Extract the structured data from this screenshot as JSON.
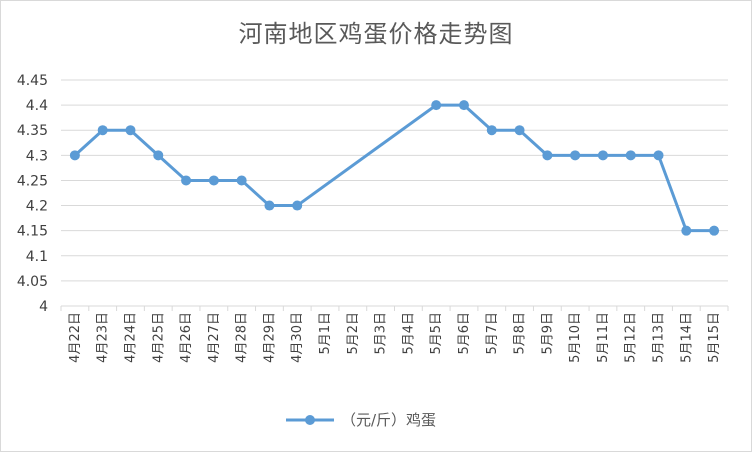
{
  "chart_data": {
    "type": "line",
    "title": "河南地区鸡蛋价格走势图",
    "xlabel": "",
    "ylabel": "",
    "ylim": [
      4,
      4.45
    ],
    "y_ticks": [
      "4",
      "4.05",
      "4.1",
      "4.15",
      "4.2",
      "4.25",
      "4.3",
      "4.35",
      "4.4",
      "4.45"
    ],
    "grid": true,
    "legend_position": "bottom",
    "categories": [
      "4月22日",
      "4月23日",
      "4月24日",
      "4月25日",
      "4月26日",
      "4月27日",
      "4月28日",
      "4月29日",
      "4月30日",
      "5月1日",
      "5月2日",
      "5月3日",
      "5月4日",
      "5月5日",
      "5月6日",
      "5月7日",
      "5月8日",
      "5月9日",
      "5月10日",
      "5月11日",
      "5月12日",
      "5月13日",
      "5月14日",
      "5月15日"
    ],
    "series": [
      {
        "name": "（元/斤）鸡蛋",
        "color": "#5b9bd5",
        "values": [
          4.3,
          4.35,
          4.35,
          4.3,
          4.25,
          4.25,
          4.25,
          4.2,
          4.2,
          null,
          null,
          null,
          null,
          4.4,
          4.4,
          4.35,
          4.35,
          4.3,
          4.3,
          4.3,
          4.3,
          4.3,
          4.15,
          4.15
        ]
      }
    ]
  }
}
